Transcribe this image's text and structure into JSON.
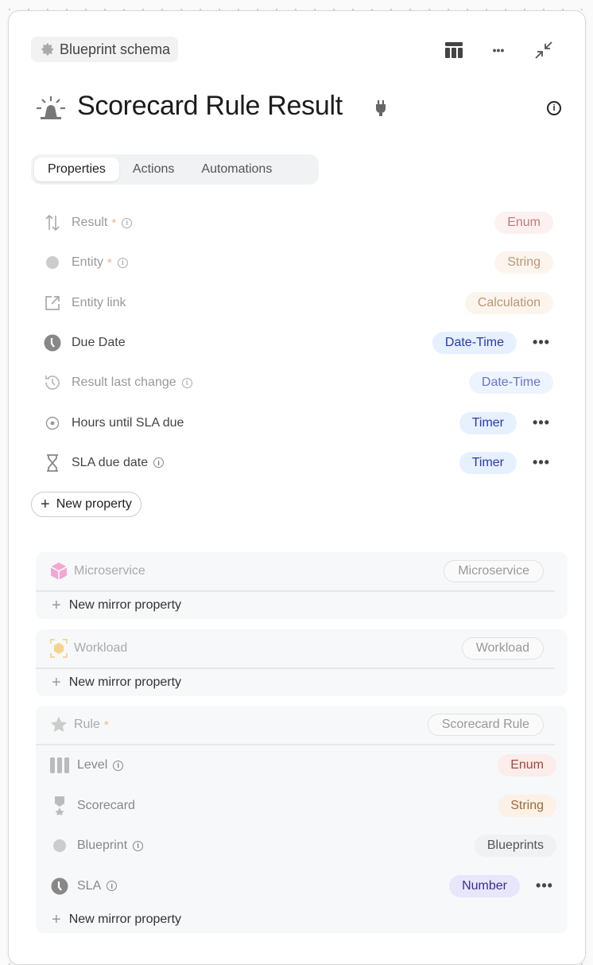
{
  "header": {
    "breadcrumb": "Blueprint schema",
    "title": "Scorecard Rule Result",
    "icons": [
      "gear-icon",
      "table-icon",
      "more-icon",
      "collapse-icon",
      "alarm-icon",
      "plug-icon",
      "info-icon"
    ]
  },
  "tabs": [
    {
      "label": "Properties",
      "active": true
    },
    {
      "label": "Actions"
    },
    {
      "label": "Automations"
    }
  ],
  "properties": [
    {
      "label": "Result",
      "required": "*",
      "info": true,
      "type": "Enum",
      "icon": "sort-arrows-icon",
      "muted": true
    },
    {
      "label": "Entity",
      "required": "*",
      "info": true,
      "type": "String",
      "icon": "circle-icon",
      "muted": true
    },
    {
      "label": "Entity link",
      "type": "Calculation",
      "icon": "external-link-icon",
      "muted": true
    },
    {
      "label": "Due Date",
      "type": "Date-Time",
      "icon": "clock-icon",
      "menu": true
    },
    {
      "label": "Result last change",
      "info": true,
      "type": "Date-Time",
      "icon": "history-icon",
      "muted": true
    },
    {
      "label": "Hours until SLA due",
      "type": "Timer",
      "icon": "target-icon",
      "menu": true
    },
    {
      "label": "SLA due date",
      "info": true,
      "type": "Timer",
      "icon": "hourglass-icon",
      "menu": true
    }
  ],
  "new_property_label": "New property",
  "new_mirror_label": "New mirror property",
  "relations": [
    {
      "label": "Microservice",
      "target": "Microservice",
      "icon": "cube-icon",
      "color": "#f2a7d3"
    },
    {
      "label": "Workload",
      "target": "Workload",
      "icon": "workload-icon",
      "color": "#f4d48c"
    },
    {
      "label": "Rule",
      "required": "*",
      "target": "Scorecard Rule",
      "icon": "star-icon",
      "mirrors": [
        {
          "label": "Level",
          "info": true,
          "type": "Enum",
          "icon": "bars-icon"
        },
        {
          "label": "Scorecard",
          "type": "String",
          "icon": "medal-icon"
        },
        {
          "label": "Blueprint",
          "info": true,
          "type": "Blueprints",
          "icon": "circle-icon"
        },
        {
          "label": "SLA",
          "info": true,
          "type": "Number",
          "icon": "clock-icon",
          "menu": true
        }
      ]
    }
  ],
  "more_label": "•••",
  "info_glyph": "i",
  "type_colors": {
    "Enum": {
      "bg": "#fcecea",
      "fg": "#a0473f"
    },
    "String": {
      "bg": "#fcf1e6",
      "fg": "#9a6a3d"
    },
    "Calculation": {
      "bg": "#fcf1e6",
      "fg": "#9a6a3d"
    },
    "Date-Time": {
      "bg": "#e6f0ff",
      "fg": "#2a3aa8"
    },
    "Timer": {
      "bg": "#e6f0ff",
      "fg": "#2a3aa8"
    },
    "Blueprints": {
      "bg": "#f0f1f3",
      "fg": "#555"
    },
    "Number": {
      "bg": "#e8e6fb",
      "fg": "#3b2e8c"
    }
  }
}
